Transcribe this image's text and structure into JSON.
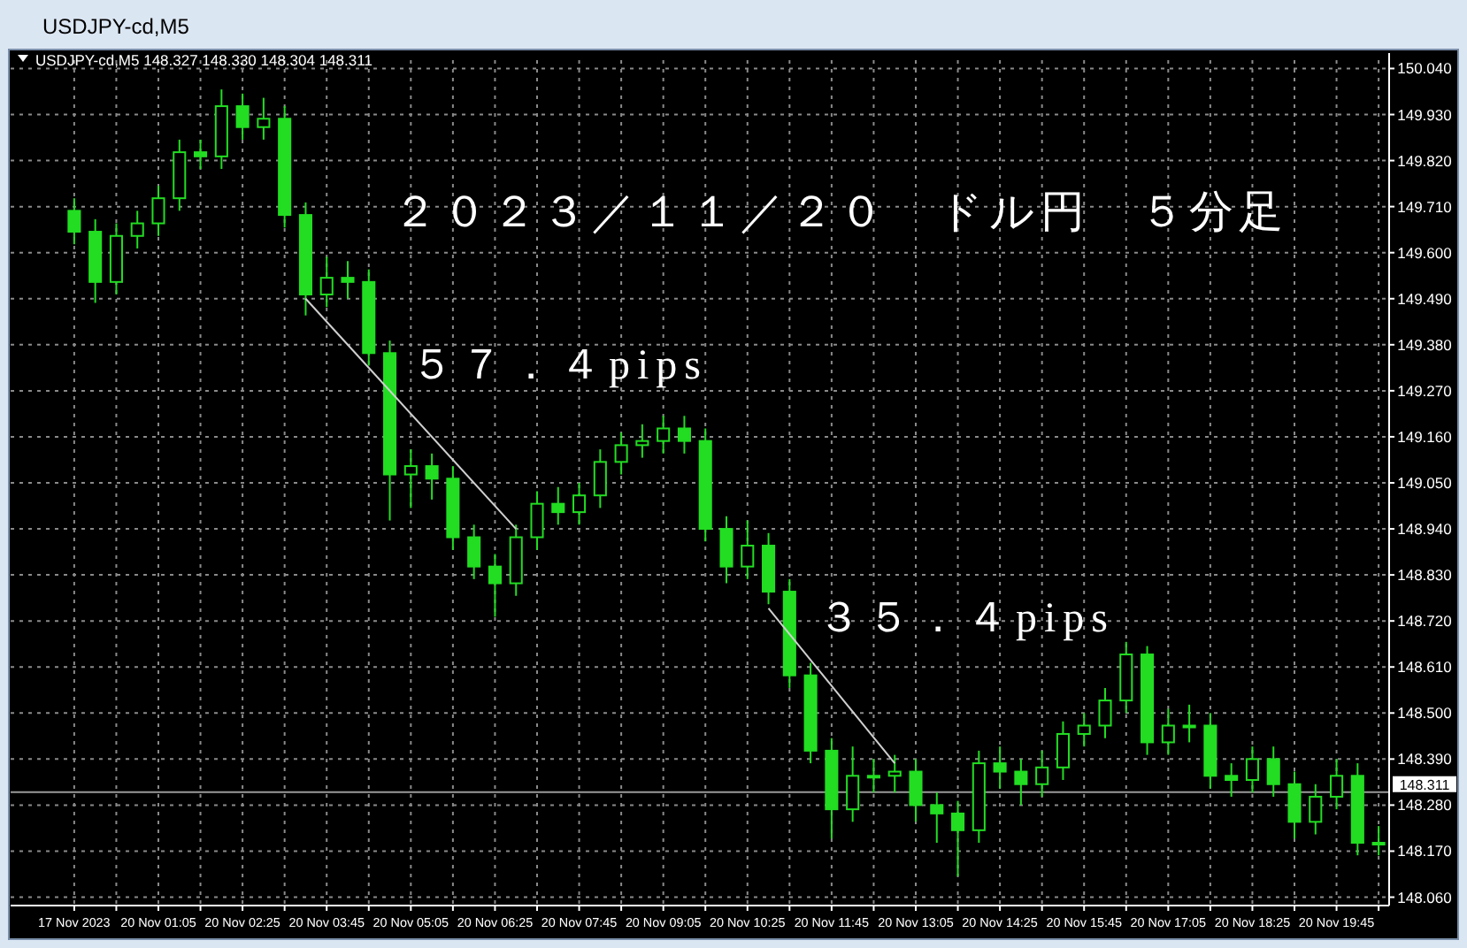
{
  "chart_data": {
    "type": "candlestick",
    "title": "２０２３／１１／２０　ドル円　５分足",
    "annotations": [
      "USDJPY-cd,M5",
      "USDJPY-cd,M5  148.327 148.330 148.304 148.311",
      "５７．４pips",
      "３５．４pips"
    ],
    "series": [
      {
        "type": "line",
        "color": "#d0d0d0",
        "values": [
          null,
          null,
          null,
          null,
          null,
          null,
          null,
          null,
          null,
          null,
          null,
          149.49,
          null,
          null,
          null,
          null,
          null,
          null,
          null,
          null,
          null,
          148.94,
          null,
          null,
          null,
          null,
          null,
          null,
          null,
          null,
          null,
          null,
          null,
          null,
          null,
          null,
          null,
          null,
          null,
          null,
          null,
          null,
          null,
          null,
          null,
          null,
          null,
          null,
          null,
          null,
          null,
          null,
          null,
          null,
          null,
          null,
          null,
          null,
          null,
          null,
          null,
          null,
          null
        ]
      },
      {
        "type": "line",
        "color": "#d0d0d0",
        "values": [
          null,
          null,
          null,
          null,
          null,
          null,
          null,
          null,
          null,
          null,
          null,
          null,
          null,
          null,
          null,
          null,
          null,
          null,
          null,
          null,
          null,
          null,
          null,
          null,
          null,
          null,
          null,
          null,
          null,
          null,
          null,
          null,
          null,
          148.75,
          null,
          null,
          null,
          null,
          null,
          148.38,
          null,
          null,
          null,
          null,
          null,
          null,
          null,
          null,
          null,
          null,
          null,
          null,
          null,
          null,
          null,
          null,
          null,
          null,
          null,
          null,
          null,
          null,
          null
        ]
      }
    ],
    "categories": [
      "17 Nov 2023",
      null,
      null,
      null,
      "20 Nov 01:05",
      null,
      null,
      null,
      "20 Nov 02:25",
      null,
      null,
      null,
      "20 Nov 03:45",
      null,
      null,
      null,
      "20 Nov 05:05",
      null,
      null,
      null,
      "20 Nov 06:25",
      null,
      null,
      null,
      "20 Nov 07:45",
      null,
      null,
      null,
      "20 Nov 09:05",
      null,
      null,
      null,
      "20 Nov 10:25",
      null,
      null,
      null,
      "20 Nov 11:45",
      null,
      null,
      null,
      "20 Nov 13:05",
      null,
      null,
      null,
      "20 Nov 14:25",
      null,
      null,
      null,
      "20 Nov 15:45",
      null,
      null,
      null,
      "20 Nov 17:05",
      null,
      null,
      null,
      "20 Nov 18:25",
      null,
      null,
      null,
      "20 Nov 19:45",
      null,
      null
    ],
    "ohlc": [
      [
        149.7,
        149.73,
        149.62,
        149.65
      ],
      [
        149.65,
        149.68,
        149.48,
        149.53
      ],
      [
        149.53,
        149.67,
        149.5,
        149.64
      ],
      [
        149.64,
        149.7,
        149.61,
        149.67
      ],
      [
        149.67,
        149.76,
        149.64,
        149.73
      ],
      [
        149.73,
        149.87,
        149.7,
        149.84
      ],
      [
        149.84,
        149.87,
        149.8,
        149.83
      ],
      [
        149.83,
        149.99,
        149.8,
        149.95
      ],
      [
        149.95,
        149.98,
        149.87,
        149.9
      ],
      [
        149.9,
        149.97,
        149.87,
        149.92
      ],
      [
        149.92,
        149.95,
        149.66,
        149.69
      ],
      [
        149.69,
        149.72,
        149.45,
        149.5
      ],
      [
        149.5,
        149.59,
        149.47,
        149.54
      ],
      [
        149.54,
        149.58,
        149.49,
        149.53
      ],
      [
        149.53,
        149.56,
        149.33,
        149.36
      ],
      [
        149.36,
        149.39,
        148.96,
        149.07
      ],
      [
        149.07,
        149.13,
        148.99,
        149.09
      ],
      [
        149.09,
        149.12,
        149.01,
        149.06
      ],
      [
        149.06,
        149.09,
        148.89,
        148.92
      ],
      [
        148.92,
        148.95,
        148.82,
        148.85
      ],
      [
        148.85,
        148.88,
        148.73,
        148.81
      ],
      [
        148.81,
        148.95,
        148.78,
        148.92
      ],
      [
        148.92,
        149.03,
        148.89,
        149.0
      ],
      [
        149.0,
        149.04,
        148.95,
        148.98
      ],
      [
        148.98,
        149.05,
        148.95,
        149.02
      ],
      [
        149.02,
        149.13,
        148.99,
        149.1
      ],
      [
        149.1,
        149.17,
        149.07,
        149.14
      ],
      [
        149.14,
        149.19,
        149.11,
        149.15
      ],
      [
        149.15,
        149.21,
        149.12,
        149.18
      ],
      [
        149.18,
        149.21,
        149.12,
        149.15
      ],
      [
        149.15,
        149.18,
        148.91,
        148.94
      ],
      [
        148.94,
        148.97,
        148.81,
        148.85
      ],
      [
        148.85,
        148.96,
        148.82,
        148.9
      ],
      [
        148.9,
        148.93,
        148.76,
        148.79
      ],
      [
        148.79,
        148.82,
        148.56,
        148.59
      ],
      [
        148.59,
        148.62,
        148.38,
        148.41
      ],
      [
        148.41,
        148.44,
        148.2,
        148.27
      ],
      [
        148.27,
        148.42,
        148.24,
        148.35
      ],
      [
        148.35,
        148.39,
        148.31,
        148.35
      ],
      [
        148.35,
        148.4,
        148.31,
        148.36
      ],
      [
        148.36,
        148.39,
        148.24,
        148.28
      ],
      [
        148.28,
        148.31,
        148.19,
        148.26
      ],
      [
        148.26,
        148.29,
        148.11,
        148.22
      ],
      [
        148.22,
        148.41,
        148.19,
        148.38
      ],
      [
        148.38,
        148.42,
        148.32,
        148.36
      ],
      [
        148.36,
        148.39,
        148.28,
        148.33
      ],
      [
        148.33,
        148.41,
        148.3,
        148.37
      ],
      [
        148.37,
        148.48,
        148.34,
        148.45
      ],
      [
        148.45,
        148.5,
        148.42,
        148.47
      ],
      [
        148.47,
        148.56,
        148.44,
        148.53
      ],
      [
        148.53,
        148.67,
        148.5,
        148.64
      ],
      [
        148.64,
        148.66,
        148.4,
        148.43
      ],
      [
        148.43,
        148.51,
        148.4,
        148.47
      ],
      [
        148.47,
        148.52,
        148.43,
        148.47
      ],
      [
        148.47,
        148.5,
        148.32,
        148.35
      ],
      [
        148.35,
        148.38,
        148.3,
        148.34
      ],
      [
        148.34,
        148.42,
        148.31,
        148.39
      ],
      [
        148.39,
        148.42,
        148.3,
        148.33
      ],
      [
        148.33,
        148.36,
        148.2,
        148.24
      ],
      [
        148.24,
        148.33,
        148.21,
        148.3
      ],
      [
        148.3,
        148.39,
        148.27,
        148.35
      ],
      [
        148.35,
        148.38,
        148.16,
        148.19
      ],
      [
        148.19,
        148.23,
        148.16,
        148.19
      ]
    ],
    "color": "#22dd22",
    "ylim": [
      148.04,
      150.06
    ],
    "yticks": [
      {
        "value": 148.06,
        "label": "148.060"
      },
      {
        "value": 148.17,
        "label": "148.170"
      },
      {
        "value": 148.28,
        "label": "148.280"
      },
      {
        "value": 148.39,
        "label": "148.390"
      },
      {
        "value": 148.5,
        "label": "148.500"
      },
      {
        "value": 148.61,
        "label": "148.610"
      },
      {
        "value": 148.72,
        "label": "148.720"
      },
      {
        "value": 148.83,
        "label": "148.830"
      },
      {
        "value": 148.94,
        "label": "148.940"
      },
      {
        "value": 149.05,
        "label": "149.050"
      },
      {
        "value": 149.16,
        "label": "149.160"
      },
      {
        "value": 149.27,
        "label": "149.270"
      },
      {
        "value": 149.38,
        "label": "149.380"
      },
      {
        "value": 149.49,
        "label": "149.490"
      },
      {
        "value": 149.6,
        "label": "149.600"
      },
      {
        "value": 149.71,
        "label": "149.710"
      },
      {
        "value": 149.82,
        "label": "149.820"
      },
      {
        "value": 149.93,
        "label": "149.930"
      },
      {
        "value": 150.04,
        "label": "150.040"
      }
    ],
    "grid": true,
    "ref_lines": [
      {
        "axis": "y",
        "value": 148.311,
        "label": "148.311",
        "color": "#9a9a9a"
      }
    ]
  }
}
